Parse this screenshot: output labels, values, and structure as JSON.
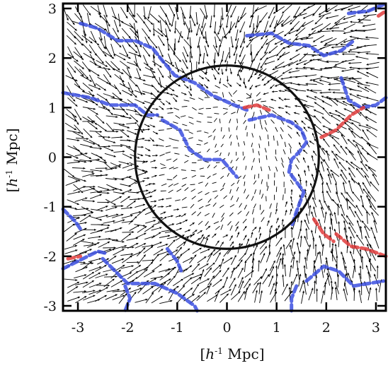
{
  "chart_data": {
    "type": "vector_field",
    "xlabel_italic": "h",
    "xlabel_sup": "-1",
    "xlabel_unit": " Mpc",
    "ylabel_italic": "h",
    "ylabel_sup": "-1",
    "ylabel_unit": " Mpc",
    "xlim": [
      -3.3,
      3.2
    ],
    "ylim": [
      -3.1,
      3.1
    ],
    "xticks": [
      -3,
      -2,
      -1,
      0,
      1,
      2,
      3
    ],
    "yticks": [
      -3,
      -2,
      -1,
      0,
      1,
      2,
      3
    ],
    "circle": {
      "center": [
        0,
        0
      ],
      "radius": 1.85
    },
    "colors": {
      "blue_boundary": "#3b4fe0",
      "red_boundary": "#e03b3b",
      "arrows": "#000000"
    },
    "blue_boundaries": [
      [
        [
          -2.95,
          2.7
        ],
        [
          -2.6,
          2.6
        ],
        [
          -2.2,
          2.35
        ],
        [
          -1.85,
          2.35
        ],
        [
          -1.5,
          2.2
        ],
        [
          -1.3,
          1.95
        ],
        [
          -1.05,
          1.65
        ],
        [
          -0.65,
          1.5
        ],
        [
          -0.3,
          1.25
        ],
        [
          0.15,
          1.05
        ],
        [
          0.4,
          0.95
        ]
      ],
      [
        [
          -3.3,
          1.3
        ],
        [
          -2.75,
          1.2
        ],
        [
          -2.35,
          1.05
        ],
        [
          -1.85,
          1.05
        ],
        [
          -1.6,
          0.85
        ],
        [
          -1.4,
          0.85
        ]
      ],
      [
        [
          -1.3,
          0.75
        ],
        [
          -0.95,
          0.55
        ],
        [
          -0.75,
          0.15
        ],
        [
          -0.45,
          -0.05
        ],
        [
          -0.1,
          -0.05
        ],
        [
          0.2,
          -0.4
        ]
      ],
      [
        [
          0.45,
          0.75
        ],
        [
          0.9,
          0.85
        ],
        [
          1.3,
          0.7
        ],
        [
          1.5,
          0.55
        ],
        [
          1.6,
          0.3
        ],
        [
          1.45,
          0.1
        ],
        [
          1.3,
          -0.05
        ],
        [
          1.25,
          -0.3
        ],
        [
          1.55,
          -0.7
        ],
        [
          1.4,
          -1.1
        ],
        [
          1.3,
          -1.4
        ]
      ],
      [
        [
          0.4,
          2.45
        ],
        [
          0.9,
          2.5
        ],
        [
          1.25,
          2.3
        ],
        [
          1.65,
          2.25
        ],
        [
          1.95,
          2.05
        ],
        [
          2.3,
          2.15
        ],
        [
          2.55,
          2.35
        ]
      ],
      [
        [
          2.3,
          1.6
        ],
        [
          2.45,
          1.15
        ],
        [
          2.7,
          1.0
        ],
        [
          3.0,
          1.05
        ],
        [
          3.2,
          1.2
        ]
      ],
      [
        [
          2.45,
          2.9
        ],
        [
          2.85,
          2.95
        ],
        [
          3.2,
          3.1
        ]
      ],
      [
        [
          1.6,
          -2.5
        ],
        [
          1.95,
          -2.2
        ],
        [
          2.25,
          -2.3
        ],
        [
          2.55,
          -2.6
        ],
        [
          2.85,
          -2.55
        ],
        [
          3.15,
          -2.5
        ]
      ],
      [
        [
          1.4,
          -2.6
        ],
        [
          1.3,
          -2.85
        ],
        [
          1.3,
          -3.1
        ]
      ],
      [
        [
          -3.3,
          -2.25
        ],
        [
          -3.0,
          -2.1
        ],
        [
          -2.6,
          -1.9
        ],
        [
          -2.4,
          -1.95
        ]
      ],
      [
        [
          -3.3,
          -1.05
        ],
        [
          -3.05,
          -1.3
        ],
        [
          -2.95,
          -1.45
        ]
      ],
      [
        [
          -2.5,
          -2.05
        ],
        [
          -2.25,
          -2.3
        ],
        [
          -2.0,
          -2.55
        ],
        [
          -1.45,
          -2.55
        ],
        [
          -1.0,
          -2.75
        ],
        [
          -0.65,
          -3.0
        ],
        [
          -0.6,
          -3.1
        ]
      ],
      [
        [
          -1.2,
          -1.85
        ],
        [
          -1.0,
          -2.1
        ],
        [
          -0.9,
          -2.35
        ]
      ],
      [
        [
          -2.05,
          -2.6
        ],
        [
          -1.95,
          -2.85
        ],
        [
          -2.05,
          -3.1
        ]
      ]
    ],
    "red_boundaries": [
      [
        [
          0.35,
          1.0
        ],
        [
          0.6,
          1.05
        ],
        [
          0.85,
          0.95
        ]
      ],
      [
        [
          1.9,
          0.4
        ],
        [
          2.2,
          0.55
        ],
        [
          2.5,
          0.85
        ],
        [
          2.75,
          1.0
        ]
      ],
      [
        [
          2.2,
          -1.55
        ],
        [
          2.5,
          -1.8
        ],
        [
          2.8,
          -1.85
        ],
        [
          3.2,
          -2.0
        ]
      ],
      [
        [
          1.75,
          -1.25
        ],
        [
          1.95,
          -1.55
        ],
        [
          2.15,
          -1.7
        ]
      ],
      [
        [
          3.05,
          2.85
        ],
        [
          3.2,
          2.95
        ]
      ],
      [
        [
          -3.2,
          -2.05
        ],
        [
          -2.95,
          -2.0
        ]
      ]
    ]
  }
}
